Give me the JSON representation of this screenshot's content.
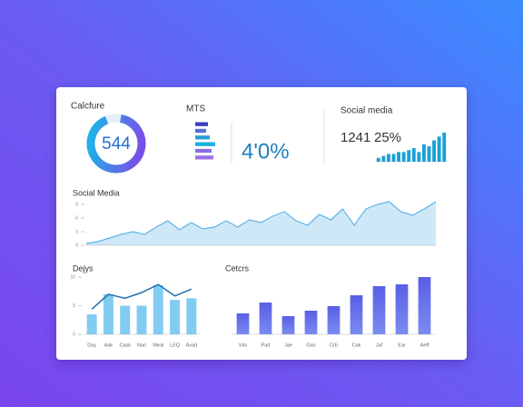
{
  "widgets": {
    "calc": {
      "title": "Calcfure",
      "value": "544"
    },
    "mts": {
      "title": "MTS",
      "value": "4'0%"
    },
    "social": {
      "title": "Social media",
      "count": "1241",
      "percent": "25%"
    }
  },
  "chart_data": [
    {
      "type": "area",
      "title": "Social Media",
      "values": [
        0.4,
        0.8,
        1.6,
        2.4,
        3,
        2.4,
        4,
        5.4,
        3.4,
        5,
        3.6,
        4,
        5.4,
        4,
        5.6,
        5,
        6.4,
        7.4,
        5.4,
        4.4,
        6.8,
        5.6,
        8,
        4.4,
        8,
        9,
        9.6,
        7.4,
        6.6,
        8,
        9.6
      ],
      "ylim": [
        0,
        10
      ],
      "yticks": [
        0,
        3,
        6,
        9
      ],
      "color": "#5fb3e8"
    },
    {
      "type": "bar-line",
      "title": "Dejys",
      "categories": [
        "Day",
        "Aak",
        "Cask",
        "Nao",
        "Meal",
        "LEQ",
        "Avad"
      ],
      "series": [
        {
          "type": "bar",
          "color": "#6cc3ee",
          "values": [
            3.5,
            7,
            5,
            5,
            8.6,
            6,
            6.3
          ]
        },
        {
          "type": "line",
          "color": "#1f6fb0",
          "values": [
            4.4,
            7,
            6.3,
            7.3,
            8.7,
            6.7,
            7.9
          ]
        }
      ],
      "ylim": [
        0,
        10
      ],
      "yticks": [
        0,
        5,
        10
      ]
    },
    {
      "type": "bar",
      "title": "Cetcrs",
      "categories": [
        "Vds",
        "Pad",
        "Jae",
        "Gan",
        "Crb",
        "Cak",
        "Jaf",
        "Ear",
        "Aeff"
      ],
      "values": [
        23,
        35,
        20,
        26,
        31,
        43,
        53,
        55,
        63
      ],
      "ylim": [
        0,
        70
      ],
      "color": "#6a6fe6"
    },
    {
      "type": "bar",
      "values": [
        4,
        6,
        8,
        8,
        10,
        10,
        12,
        14,
        10,
        18,
        16,
        22,
        26,
        30
      ],
      "ylim": [
        0,
        30
      ],
      "color": "#1aa0d8"
    },
    {
      "type": "hbar",
      "values": [
        14,
        12,
        16,
        22,
        18,
        20
      ],
      "xlim": [
        0,
        22
      ],
      "colors": [
        "#3a3fbf",
        "#5a6fd8",
        "#2a9fd8",
        "#1ab0e0",
        "#8a6fe0",
        "#a06fe0"
      ]
    }
  ]
}
